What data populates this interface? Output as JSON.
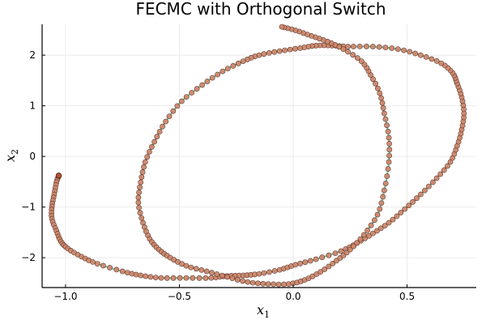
{
  "chart_data": {
    "type": "scatter",
    "title": "FECMC with Orthogonal Switch",
    "xlabel": "x",
    "xlabel_subscript": "1",
    "ylabel": "x",
    "ylabel_subscript": "2",
    "xlim": [
      -1.103,
      0.804
    ],
    "ylim": [
      -2.59,
      2.61
    ],
    "xticks": [
      -1.0,
      -0.5,
      0.0,
      0.5
    ],
    "xtick_labels": [
      "−1.0",
      "−0.5",
      "0.0",
      "0.5"
    ],
    "yticks": [
      -2,
      -1,
      0,
      1,
      2
    ],
    "ytick_labels": [
      "−2",
      "−1",
      "0",
      "1",
      "2"
    ],
    "grid": true,
    "legend": "none",
    "colors": {
      "line": "#6cc4a6",
      "marker_fill": "#d0866a",
      "marker_edge": "#5a3a2e",
      "start_marker": "#c0502d"
    },
    "series": [
      {
        "name": "trajectory",
        "x": [
          -1.03,
          -1.04,
          -1.05,
          -1.06,
          -1.06,
          -1.04,
          -1.02,
          -0.99,
          -0.93,
          -0.86,
          -0.75,
          -0.67,
          -0.58,
          -0.47,
          -0.36,
          -0.29,
          -0.22,
          -0.15,
          -0.06,
          0.01,
          0.1,
          0.21,
          0.28,
          0.35,
          0.42,
          0.49,
          0.56,
          0.63,
          0.69,
          0.72,
          0.74,
          0.75,
          0.74,
          0.72,
          0.7,
          0.65,
          0.56,
          0.46,
          0.35,
          0.24,
          0.17,
          0.1,
          0.03,
          -0.06,
          -0.15,
          -0.22,
          -0.31,
          -0.4,
          -0.49,
          -0.56,
          -0.61,
          -0.65,
          -0.67,
          -0.68,
          -0.66,
          -0.63,
          -0.59,
          -0.54,
          -0.47,
          -0.38,
          -0.29,
          -0.2,
          -0.11,
          -0.02,
          0.05,
          0.12,
          0.19,
          0.25,
          0.31,
          0.37,
          0.4,
          0.42,
          0.42,
          0.4,
          0.38,
          0.34,
          0.3,
          0.22,
          0.15,
          0.08,
          0.01,
          -0.05
        ],
        "y": [
          -0.38,
          -0.51,
          -0.75,
          -0.99,
          -1.23,
          -1.47,
          -1.68,
          -1.82,
          -1.98,
          -2.12,
          -2.27,
          -2.35,
          -2.4,
          -2.4,
          -2.4,
          -2.36,
          -2.35,
          -2.32,
          -2.24,
          -2.14,
          -2.03,
          -1.87,
          -1.71,
          -1.52,
          -1.31,
          -1.04,
          -0.75,
          -0.43,
          -0.11,
          0.21,
          0.53,
          0.85,
          1.17,
          1.44,
          1.65,
          1.84,
          2.0,
          2.12,
          2.17,
          2.17,
          2.19,
          2.19,
          2.14,
          2.08,
          2.0,
          1.88,
          1.68,
          1.41,
          1.09,
          0.69,
          0.29,
          -0.11,
          -0.51,
          -0.91,
          -1.31,
          -1.63,
          -1.84,
          -2.0,
          -2.16,
          -2.27,
          -2.38,
          -2.48,
          -2.52,
          -2.52,
          -2.44,
          -2.28,
          -2.06,
          -1.84,
          -1.55,
          -1.15,
          -0.67,
          -0.11,
          0.37,
          0.85,
          1.25,
          1.61,
          1.88,
          2.12,
          2.27,
          2.38,
          2.49,
          2.56
        ]
      }
    ],
    "start_point": {
      "x": -1.03,
      "y": -0.38
    }
  }
}
